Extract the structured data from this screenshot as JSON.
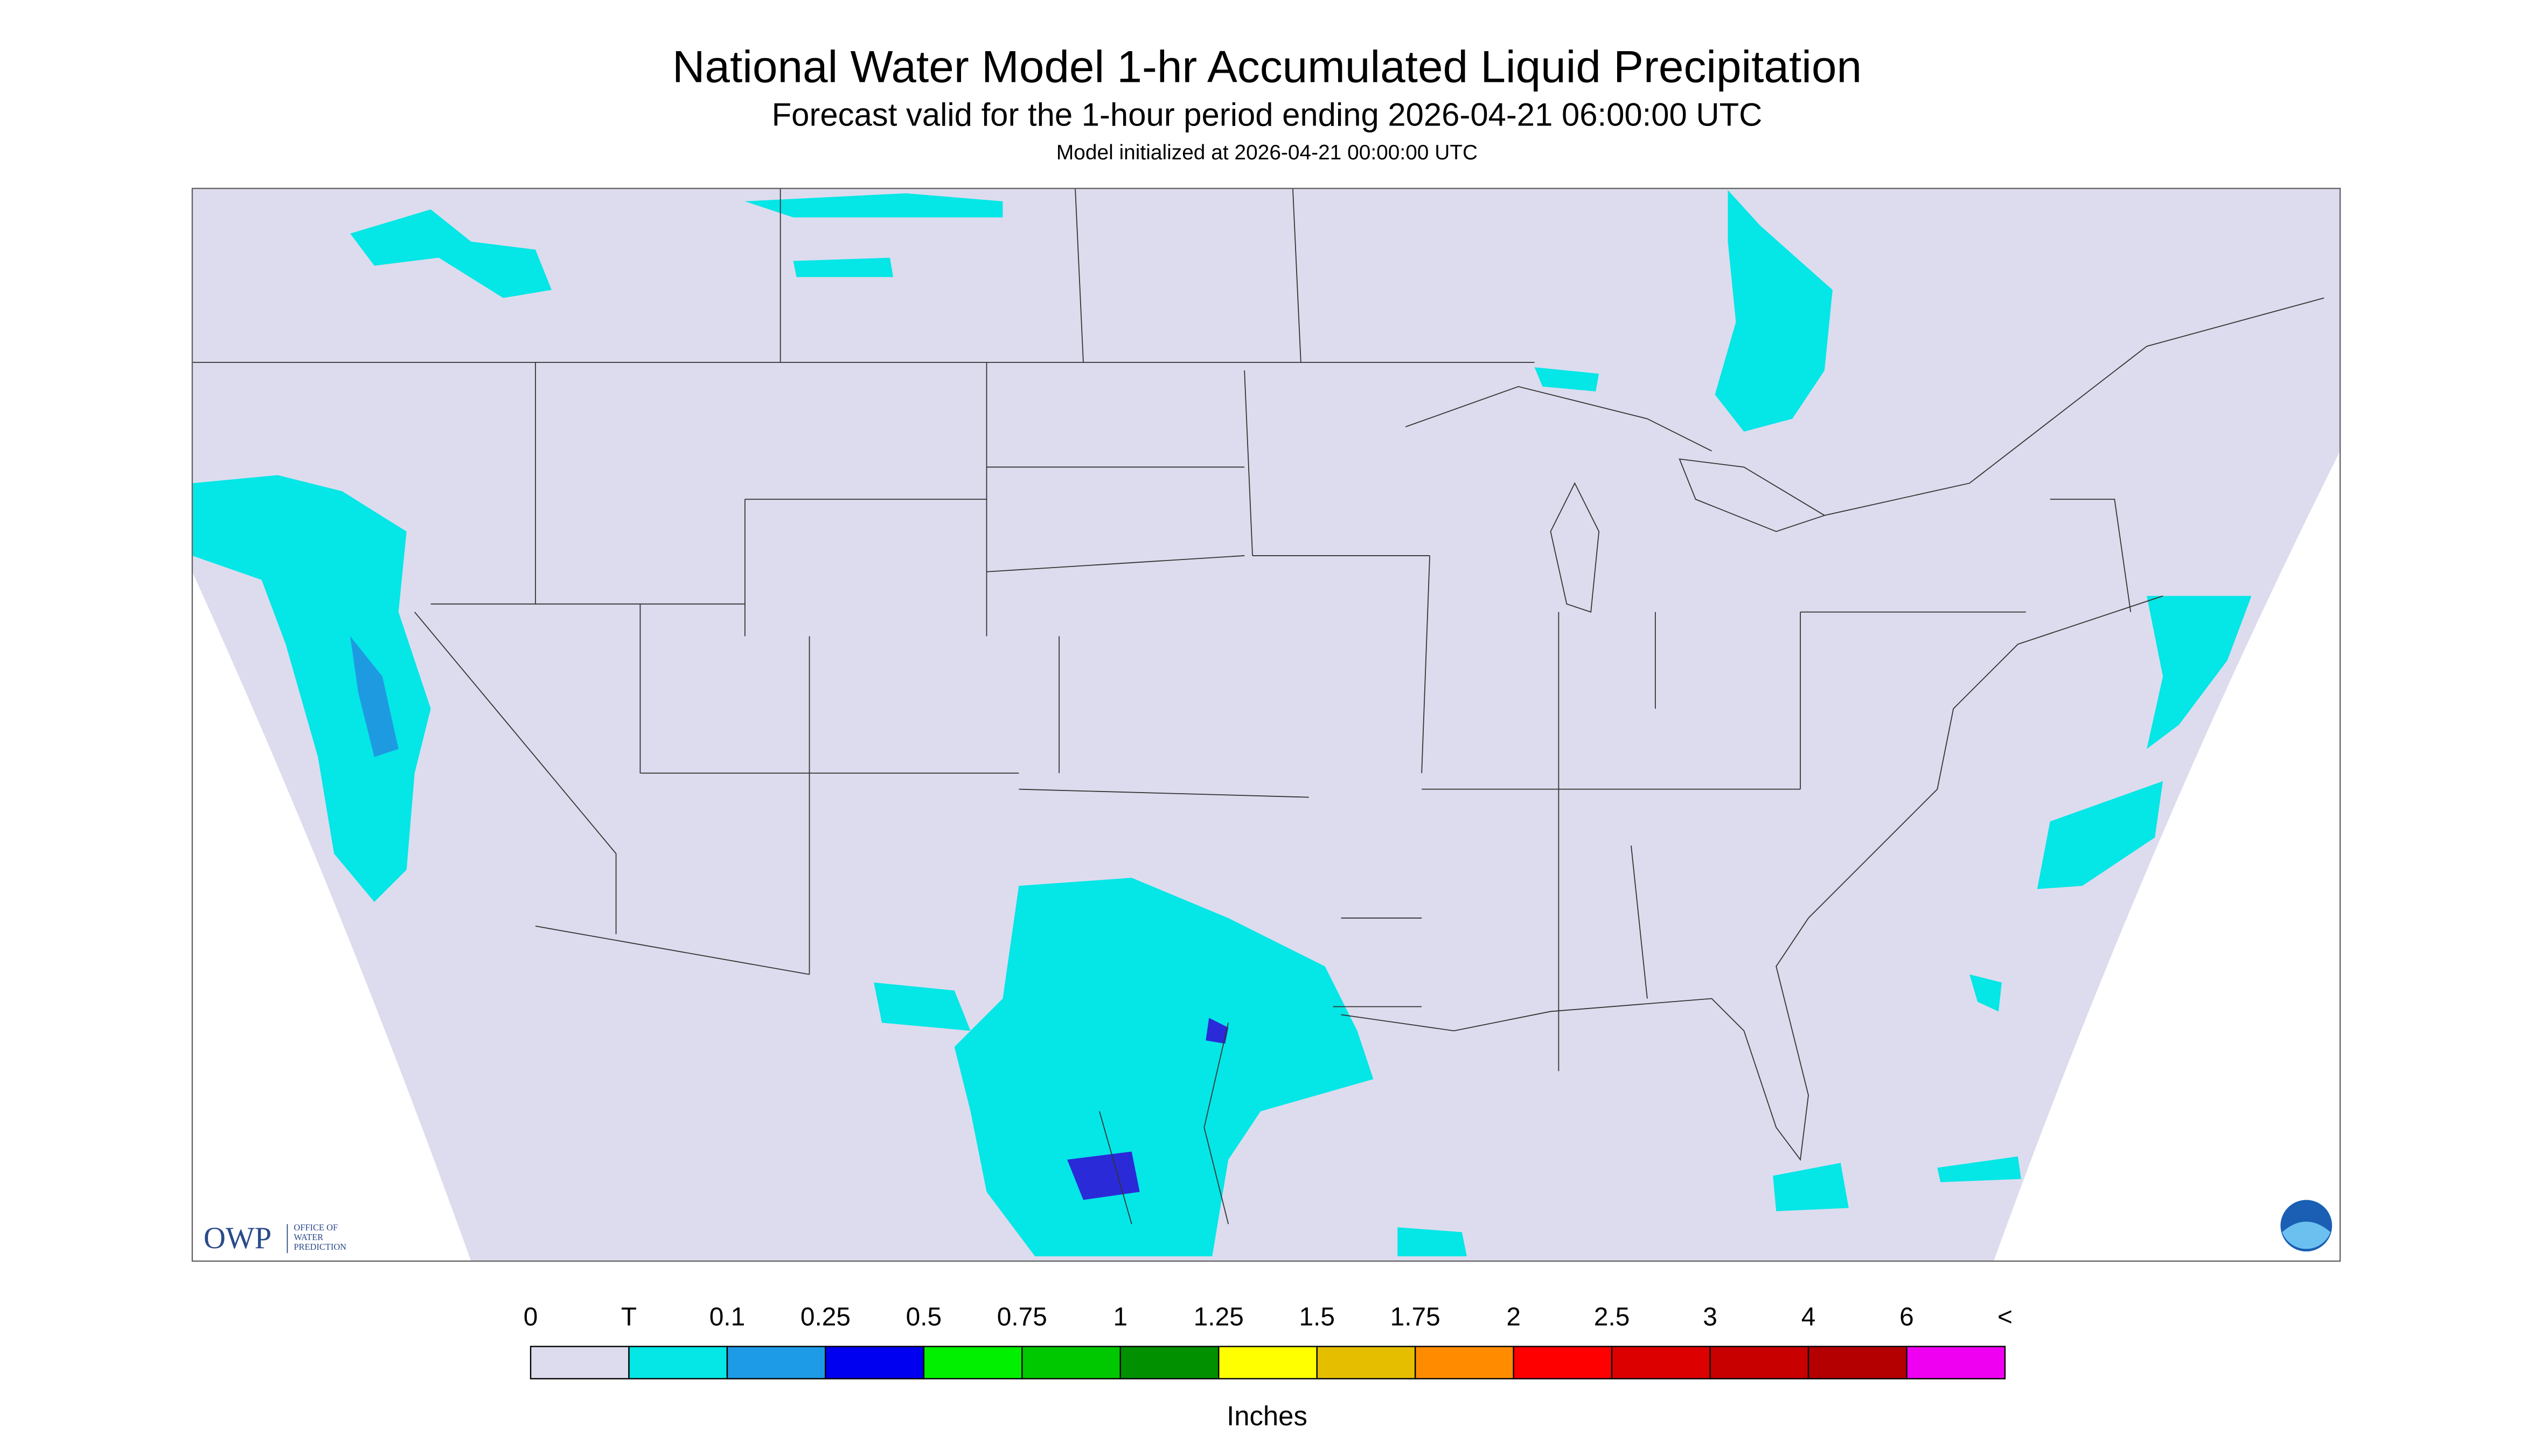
{
  "header": {
    "title": "National Water Model 1-hr Accumulated Liquid Precipitation",
    "subtitle": "Forecast valid for the 1-hour period ending 2026-04-21 06:00:00 UTC",
    "note": "Model initialized at 2026-04-21 00:00:00 UTC"
  },
  "logo": {
    "name": "OWP",
    "lines": [
      "OFFICE OF",
      "WATER",
      "PREDICTION"
    ]
  },
  "legend": {
    "labels": [
      "0",
      "T",
      "0.1",
      "0.25",
      "0.5",
      "0.75",
      "1",
      "1.25",
      "1.5",
      "1.75",
      "2",
      "2.5",
      "3",
      "4",
      "6",
      "<"
    ],
    "colors": [
      "#dcdcee",
      "#05e6e6",
      "#1e9be6",
      "#0000f0",
      "#00f000",
      "#00c800",
      "#009000",
      "#ffff00",
      "#e6be00",
      "#ff8c00",
      "#ff0000",
      "#dc0000",
      "#c80000",
      "#b40000",
      "#f000f0",
      "#9650c8"
    ],
    "unit": "Inches"
  }
}
